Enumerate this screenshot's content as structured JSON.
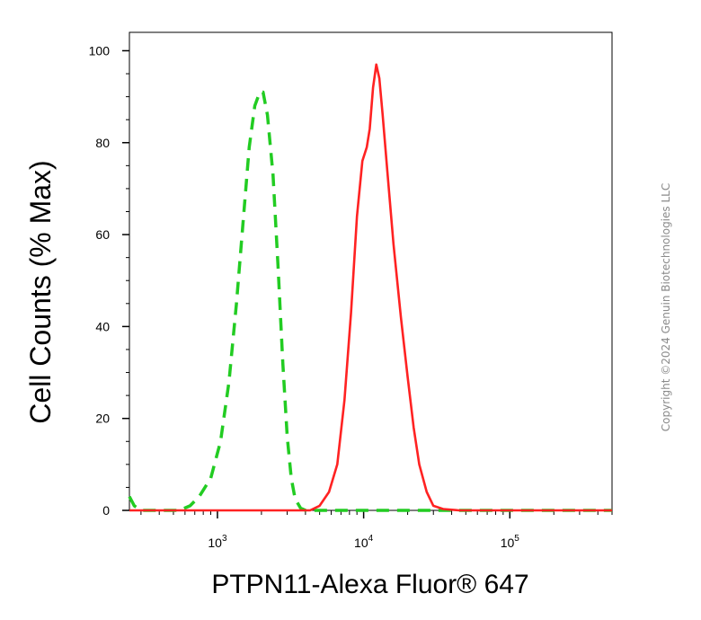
{
  "chart_data": {
    "type": "line",
    "title": "",
    "xlabel": "PTPN11-Alexa Fluor® 647",
    "ylabel": "Cell Counts (% Max)",
    "x_scale": "log",
    "xlim": [
      250,
      500000
    ],
    "ylim": [
      0,
      104
    ],
    "yticks": [
      "0",
      "20",
      "40",
      "60",
      "80",
      "100"
    ],
    "xticks": [
      {
        "base": "10",
        "exp": "3",
        "value": 1000
      },
      {
        "base": "10",
        "exp": "4",
        "value": 10000
      },
      {
        "base": "10",
        "exp": "5",
        "value": 100000
      }
    ],
    "grid": false,
    "legend": "none",
    "series": [
      {
        "style": "dashed",
        "color": "#22cc22",
        "x": [
          250,
          270,
          300,
          400,
          550,
          650,
          750,
          900,
          1050,
          1200,
          1350,
          1500,
          1650,
          1800,
          1950,
          2050,
          2200,
          2400,
          2600,
          2800,
          3000,
          3200,
          3400,
          3700,
          4000,
          6000,
          20000,
          500000
        ],
        "y": [
          3,
          1,
          0,
          0,
          0,
          1,
          3,
          7,
          15,
          28,
          45,
          63,
          79,
          88,
          91,
          91,
          86,
          73,
          53,
          32,
          16,
          7,
          2.5,
          0.5,
          0,
          0,
          0,
          0
        ]
      },
      {
        "style": "solid",
        "color": "#ff2222",
        "x": [
          250,
          1000,
          3000,
          4300,
          5000,
          5800,
          6600,
          7400,
          8200,
          9000,
          9800,
          10500,
          11000,
          11600,
          12200,
          12800,
          13500,
          14500,
          16000,
          18000,
          20000,
          22000,
          24000,
          27000,
          30000,
          35000,
          45000,
          500000
        ],
        "y": [
          0,
          0,
          0,
          0,
          1,
          4,
          10,
          24,
          43,
          64,
          76,
          79,
          83,
          92,
          97,
          94,
          86,
          74,
          58,
          42,
          29,
          18,
          10,
          4,
          1,
          0.3,
          0,
          0
        ]
      }
    ]
  },
  "watermark": "Copyright ©2024 Genuin Biotechnologies LLC"
}
